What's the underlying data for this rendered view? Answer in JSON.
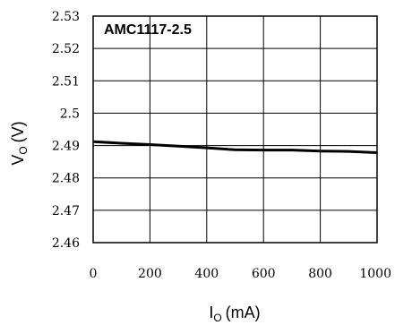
{
  "chart_data": {
    "type": "line",
    "title": "AMC1117-2.5",
    "xlabel": {
      "main": "I",
      "sub": "O",
      "unit": "(mA)"
    },
    "ylabel": {
      "main": "V",
      "sub": "O",
      "unit": "(V)"
    },
    "xlim": [
      0,
      1000
    ],
    "ylim": [
      2.46,
      2.53
    ],
    "x_ticks": [
      0,
      200,
      400,
      600,
      800,
      1000
    ],
    "y_ticks": [
      2.46,
      2.47,
      2.48,
      2.49,
      2.5,
      2.51,
      2.52,
      2.53
    ],
    "x_tick_labels": [
      "0",
      "200",
      "400",
      "600",
      "800",
      "1000"
    ],
    "y_tick_labels": [
      "2.46",
      "2.47",
      "2.48",
      "2.49",
      "2.5",
      "2.51",
      "2.52",
      "2.53"
    ],
    "grid": true,
    "series": [
      {
        "x": [
          0,
          100,
          200,
          300,
          400,
          500,
          600,
          700,
          800,
          900,
          1000
        ],
        "y": [
          2.4912,
          2.4907,
          2.4903,
          2.4898,
          2.4893,
          2.4887,
          2.4886,
          2.4886,
          2.4883,
          2.4882,
          2.4878
        ],
        "color": "#000000"
      }
    ]
  }
}
